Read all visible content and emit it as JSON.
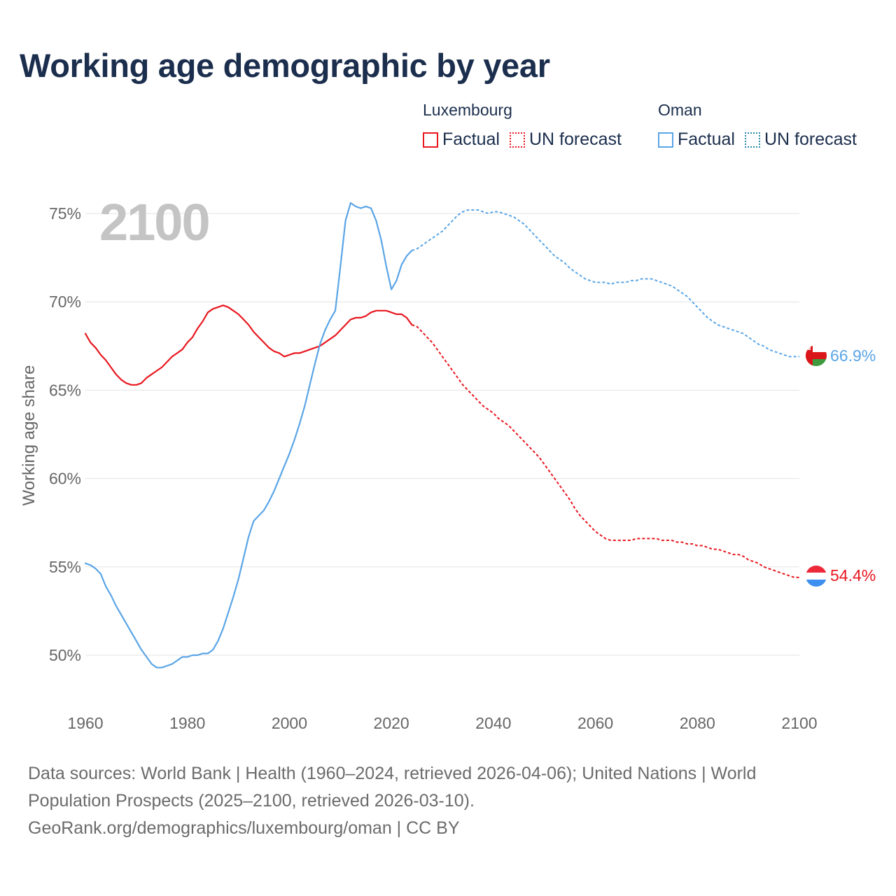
{
  "title": "Working age demographic by year",
  "legend": {
    "groups": [
      {
        "name": "Luxembourg",
        "factual": "Factual",
        "forecast": "UN forecast",
        "color": "#e8171f"
      },
      {
        "name": "Oman",
        "factual": "Factual",
        "forecast": "UN forecast",
        "color": "#5aa5e6"
      }
    ]
  },
  "footer": {
    "sources": "Data sources: World Bank | Health (1960–2024, retrieved 2026-04-06); United Nations | World Population Prospects (2025–2100, retrieved 2026-03-10).",
    "credit": "GeoRank.org/demographics/luxembourg/oman | CC BY"
  },
  "chart_data": {
    "type": "line",
    "title": "Working age demographic by year",
    "year_label": "2100",
    "ylabel": "Working age share",
    "xlabel": "",
    "xlim": [
      1960,
      2100
    ],
    "ylim": [
      48,
      76.5
    ],
    "yticks": [
      50,
      55,
      60,
      65,
      70,
      75
    ],
    "ytick_labels": [
      "50%",
      "55%",
      "60%",
      "65%",
      "70%",
      "75%"
    ],
    "xticks": [
      1960,
      1980,
      2000,
      2020,
      2040,
      2060,
      2080,
      2100
    ],
    "xtick_labels": [
      "1960",
      "1980",
      "2000",
      "2020",
      "2040",
      "2060",
      "2080",
      "2100"
    ],
    "grid": true,
    "series": [
      {
        "name": "Luxembourg",
        "color": "#e8171f",
        "end_label": "54.4%",
        "factual": [
          [
            1960,
            68.2
          ],
          [
            1961,
            67.7
          ],
          [
            1962,
            67.4
          ],
          [
            1963,
            67.0
          ],
          [
            1964,
            66.7
          ],
          [
            1965,
            66.3
          ],
          [
            1966,
            65.9
          ],
          [
            1967,
            65.6
          ],
          [
            1968,
            65.4
          ],
          [
            1969,
            65.3
          ],
          [
            1970,
            65.3
          ],
          [
            1971,
            65.4
          ],
          [
            1972,
            65.7
          ],
          [
            1973,
            65.9
          ],
          [
            1974,
            66.1
          ],
          [
            1975,
            66.3
          ],
          [
            1976,
            66.6
          ],
          [
            1977,
            66.9
          ],
          [
            1978,
            67.1
          ],
          [
            1979,
            67.3
          ],
          [
            1980,
            67.7
          ],
          [
            1981,
            68.0
          ],
          [
            1982,
            68.5
          ],
          [
            1983,
            68.9
          ],
          [
            1984,
            69.4
          ],
          [
            1985,
            69.6
          ],
          [
            1986,
            69.7
          ],
          [
            1987,
            69.8
          ],
          [
            1988,
            69.7
          ],
          [
            1989,
            69.5
          ],
          [
            1990,
            69.3
          ],
          [
            1991,
            69.0
          ],
          [
            1992,
            68.7
          ],
          [
            1993,
            68.3
          ],
          [
            1994,
            68.0
          ],
          [
            1995,
            67.7
          ],
          [
            1996,
            67.4
          ],
          [
            1997,
            67.2
          ],
          [
            1998,
            67.1
          ],
          [
            1999,
            66.9
          ],
          [
            2000,
            67.0
          ],
          [
            2001,
            67.1
          ],
          [
            2002,
            67.1
          ],
          [
            2003,
            67.2
          ],
          [
            2004,
            67.3
          ],
          [
            2005,
            67.4
          ],
          [
            2006,
            67.5
          ],
          [
            2007,
            67.7
          ],
          [
            2008,
            67.9
          ],
          [
            2009,
            68.1
          ],
          [
            2010,
            68.4
          ],
          [
            2011,
            68.7
          ],
          [
            2012,
            69.0
          ],
          [
            2013,
            69.1
          ],
          [
            2014,
            69.1
          ],
          [
            2015,
            69.2
          ],
          [
            2016,
            69.4
          ],
          [
            2017,
            69.5
          ],
          [
            2018,
            69.5
          ],
          [
            2019,
            69.5
          ],
          [
            2020,
            69.4
          ],
          [
            2021,
            69.3
          ],
          [
            2022,
            69.3
          ],
          [
            2023,
            69.1
          ],
          [
            2024,
            68.7
          ]
        ],
        "forecast": [
          [
            2024,
            68.7
          ],
          [
            2025,
            68.6
          ],
          [
            2026,
            68.3
          ],
          [
            2027,
            68.0
          ],
          [
            2028,
            67.7
          ],
          [
            2029,
            67.3
          ],
          [
            2030,
            66.9
          ],
          [
            2031,
            66.5
          ],
          [
            2032,
            66.1
          ],
          [
            2033,
            65.7
          ],
          [
            2034,
            65.3
          ],
          [
            2035,
            65.0
          ],
          [
            2036,
            64.7
          ],
          [
            2037,
            64.4
          ],
          [
            2038,
            64.1
          ],
          [
            2039,
            63.9
          ],
          [
            2040,
            63.7
          ],
          [
            2041,
            63.4
          ],
          [
            2042,
            63.2
          ],
          [
            2043,
            63.0
          ],
          [
            2044,
            62.7
          ],
          [
            2045,
            62.4
          ],
          [
            2046,
            62.1
          ],
          [
            2047,
            61.8
          ],
          [
            2048,
            61.5
          ],
          [
            2049,
            61.2
          ],
          [
            2050,
            60.8
          ],
          [
            2051,
            60.4
          ],
          [
            2052,
            60.0
          ],
          [
            2053,
            59.6
          ],
          [
            2054,
            59.2
          ],
          [
            2055,
            58.8
          ],
          [
            2056,
            58.3
          ],
          [
            2057,
            57.9
          ],
          [
            2058,
            57.6
          ],
          [
            2059,
            57.3
          ],
          [
            2060,
            57.0
          ],
          [
            2061,
            56.8
          ],
          [
            2062,
            56.6
          ],
          [
            2063,
            56.5
          ],
          [
            2064,
            56.5
          ],
          [
            2065,
            56.5
          ],
          [
            2066,
            56.5
          ],
          [
            2067,
            56.5
          ],
          [
            2068,
            56.6
          ],
          [
            2069,
            56.6
          ],
          [
            2070,
            56.6
          ],
          [
            2071,
            56.6
          ],
          [
            2072,
            56.6
          ],
          [
            2073,
            56.5
          ],
          [
            2074,
            56.5
          ],
          [
            2075,
            56.5
          ],
          [
            2076,
            56.4
          ],
          [
            2077,
            56.4
          ],
          [
            2078,
            56.3
          ],
          [
            2079,
            56.3
          ],
          [
            2080,
            56.2
          ],
          [
            2081,
            56.2
          ],
          [
            2082,
            56.1
          ],
          [
            2083,
            56.0
          ],
          [
            2084,
            56.0
          ],
          [
            2085,
            55.9
          ],
          [
            2086,
            55.8
          ],
          [
            2087,
            55.7
          ],
          [
            2088,
            55.7
          ],
          [
            2089,
            55.6
          ],
          [
            2090,
            55.4
          ],
          [
            2091,
            55.3
          ],
          [
            2092,
            55.2
          ],
          [
            2093,
            55.0
          ],
          [
            2094,
            54.9
          ],
          [
            2095,
            54.8
          ],
          [
            2096,
            54.7
          ],
          [
            2097,
            54.6
          ],
          [
            2098,
            54.5
          ],
          [
            2099,
            54.4
          ],
          [
            2100,
            54.4
          ]
        ]
      },
      {
        "name": "Oman",
        "color": "#5aa5e6",
        "end_label": "66.9%",
        "factual": [
          [
            1960,
            55.2
          ],
          [
            1961,
            55.1
          ],
          [
            1962,
            54.9
          ],
          [
            1963,
            54.6
          ],
          [
            1964,
            53.9
          ],
          [
            1965,
            53.4
          ],
          [
            1966,
            52.8
          ],
          [
            1967,
            52.3
          ],
          [
            1968,
            51.8
          ],
          [
            1969,
            51.3
          ],
          [
            1970,
            50.8
          ],
          [
            1971,
            50.3
          ],
          [
            1972,
            49.9
          ],
          [
            1973,
            49.5
          ],
          [
            1974,
            49.3
          ],
          [
            1975,
            49.3
          ],
          [
            1976,
            49.4
          ],
          [
            1977,
            49.5
          ],
          [
            1978,
            49.7
          ],
          [
            1979,
            49.9
          ],
          [
            1980,
            49.9
          ],
          [
            1981,
            50.0
          ],
          [
            1982,
            50.0
          ],
          [
            1983,
            50.1
          ],
          [
            1984,
            50.1
          ],
          [
            1985,
            50.3
          ],
          [
            1986,
            50.8
          ],
          [
            1987,
            51.5
          ],
          [
            1988,
            52.4
          ],
          [
            1989,
            53.3
          ],
          [
            1990,
            54.3
          ],
          [
            1991,
            55.5
          ],
          [
            1992,
            56.7
          ],
          [
            1993,
            57.6
          ],
          [
            1994,
            57.9
          ],
          [
            1995,
            58.2
          ],
          [
            1996,
            58.7
          ],
          [
            1997,
            59.3
          ],
          [
            1998,
            60.0
          ],
          [
            1999,
            60.7
          ],
          [
            2000,
            61.4
          ],
          [
            2001,
            62.2
          ],
          [
            2002,
            63.1
          ],
          [
            2003,
            64.1
          ],
          [
            2004,
            65.3
          ],
          [
            2005,
            66.5
          ],
          [
            2006,
            67.6
          ],
          [
            2007,
            68.4
          ],
          [
            2008,
            69.0
          ],
          [
            2009,
            69.5
          ],
          [
            2010,
            72.0
          ],
          [
            2011,
            74.6
          ],
          [
            2012,
            75.6
          ],
          [
            2013,
            75.4
          ],
          [
            2014,
            75.3
          ],
          [
            2015,
            75.4
          ],
          [
            2016,
            75.3
          ],
          [
            2017,
            74.6
          ],
          [
            2018,
            73.5
          ],
          [
            2019,
            72.0
          ],
          [
            2020,
            70.7
          ],
          [
            2021,
            71.2
          ],
          [
            2022,
            72.1
          ],
          [
            2023,
            72.6
          ],
          [
            2024,
            72.9
          ]
        ],
        "forecast": [
          [
            2024,
            72.9
          ],
          [
            2025,
            73.0
          ],
          [
            2026,
            73.2
          ],
          [
            2027,
            73.4
          ],
          [
            2028,
            73.6
          ],
          [
            2029,
            73.8
          ],
          [
            2030,
            74.0
          ],
          [
            2031,
            74.3
          ],
          [
            2032,
            74.6
          ],
          [
            2033,
            74.9
          ],
          [
            2034,
            75.1
          ],
          [
            2035,
            75.2
          ],
          [
            2036,
            75.2
          ],
          [
            2037,
            75.2
          ],
          [
            2038,
            75.1
          ],
          [
            2039,
            75.0
          ],
          [
            2040,
            75.1
          ],
          [
            2041,
            75.1
          ],
          [
            2042,
            75.0
          ],
          [
            2043,
            74.9
          ],
          [
            2044,
            74.8
          ],
          [
            2045,
            74.6
          ],
          [
            2046,
            74.4
          ],
          [
            2047,
            74.1
          ],
          [
            2048,
            73.8
          ],
          [
            2049,
            73.5
          ],
          [
            2050,
            73.2
          ],
          [
            2051,
            72.9
          ],
          [
            2052,
            72.6
          ],
          [
            2053,
            72.4
          ],
          [
            2054,
            72.2
          ],
          [
            2055,
            71.9
          ],
          [
            2056,
            71.7
          ],
          [
            2057,
            71.5
          ],
          [
            2058,
            71.3
          ],
          [
            2059,
            71.2
          ],
          [
            2060,
            71.1
          ],
          [
            2061,
            71.1
          ],
          [
            2062,
            71.1
          ],
          [
            2063,
            71.0
          ],
          [
            2064,
            71.1
          ],
          [
            2065,
            71.1
          ],
          [
            2066,
            71.1
          ],
          [
            2067,
            71.2
          ],
          [
            2068,
            71.2
          ],
          [
            2069,
            71.3
          ],
          [
            2070,
            71.3
          ],
          [
            2071,
            71.3
          ],
          [
            2072,
            71.2
          ],
          [
            2073,
            71.1
          ],
          [
            2074,
            71.0
          ],
          [
            2075,
            70.9
          ],
          [
            2076,
            70.7
          ],
          [
            2077,
            70.5
          ],
          [
            2078,
            70.3
          ],
          [
            2079,
            70.0
          ],
          [
            2080,
            69.7
          ],
          [
            2081,
            69.4
          ],
          [
            2082,
            69.1
          ],
          [
            2083,
            68.9
          ],
          [
            2084,
            68.7
          ],
          [
            2085,
            68.6
          ],
          [
            2086,
            68.5
          ],
          [
            2087,
            68.4
          ],
          [
            2088,
            68.3
          ],
          [
            2089,
            68.2
          ],
          [
            2090,
            68.0
          ],
          [
            2091,
            67.8
          ],
          [
            2092,
            67.6
          ],
          [
            2093,
            67.5
          ],
          [
            2094,
            67.3
          ],
          [
            2095,
            67.2
          ],
          [
            2096,
            67.1
          ],
          [
            2097,
            67.0
          ],
          [
            2098,
            66.9
          ],
          [
            2099,
            66.9
          ],
          [
            2100,
            66.9
          ]
        ]
      }
    ]
  }
}
